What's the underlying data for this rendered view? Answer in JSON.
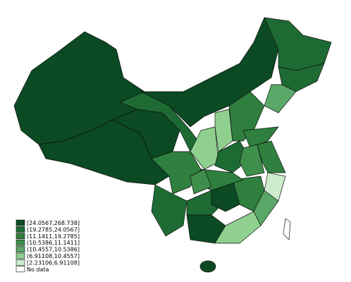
{
  "legend": {
    "items": [
      {
        "label": "[24.0567,268.738]",
        "color": "#0b4a22"
      },
      {
        "label": "(19.2785,24.0567]",
        "color": "#1d6b33"
      },
      {
        "label": "(11.1411,19.2785]",
        "color": "#2f7f3f"
      },
      {
        "label": "(10.5386,11.1411]",
        "color": "#3e8f4c"
      },
      {
        "label": "(10.4557,10.5386]",
        "color": "#5aa867"
      },
      {
        "label": "(6.91108,10.4557]",
        "color": "#8fd08f"
      },
      {
        "label": "[2.23106,6.91108]",
        "color": "#cdeccd"
      },
      {
        "label": "No data",
        "color": "#ffffff"
      }
    ]
  }
}
